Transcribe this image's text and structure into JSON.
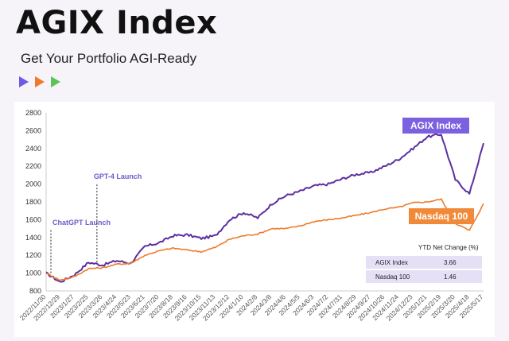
{
  "header": {
    "title": "AGIX Index",
    "subtitle": "Get Your Portfolio AGI-Ready",
    "arrow_colors": [
      "#6d5ae6",
      "#f07a2c",
      "#5ec25a"
    ]
  },
  "chart_data": {
    "type": "line",
    "title": "",
    "xlabel": "",
    "ylabel": "",
    "ylim": [
      800,
      2800
    ],
    "yticks": [
      800,
      1000,
      1200,
      1400,
      1600,
      1800,
      2000,
      2200,
      2400,
      2600,
      2800
    ],
    "xticks": [
      "2022/11/30",
      "2022/12/29",
      "2023/1/27",
      "2023/2/25",
      "2023/3/26",
      "2023/4/24",
      "2023/5/23",
      "2023/6/21",
      "2023/7/20",
      "2023/8/18",
      "2023/9/16",
      "2023/10/15",
      "2023/11/13",
      "2023/12/12",
      "2024/1/10",
      "2024/2/8",
      "2024/3/8",
      "2024/4/6",
      "2024/5/5",
      "2024/6/3",
      "2024/7/2",
      "2024/7/31",
      "2024/8/29",
      "2024/9/27",
      "2024/10/26",
      "2024/11/24",
      "2024/12/23",
      "2025/1/21",
      "2025/2/19",
      "2025/3/20",
      "2025/4/18",
      "2025/5/17"
    ],
    "grid": false,
    "series": [
      {
        "name": "AGIX Index",
        "color": "#5b2fa0",
        "values": [
          1000,
          900,
          980,
          1120,
          1090,
          1140,
          1110,
          1300,
          1340,
          1420,
          1430,
          1390,
          1420,
          1600,
          1680,
          1620,
          1780,
          1870,
          1920,
          1980,
          2000,
          2060,
          2110,
          2130,
          2200,
          2280,
          2400,
          2530,
          2560,
          2050,
          1890,
          2460
        ]
      },
      {
        "name": "Nasdaq 100",
        "color": "#ef7a2a",
        "values": [
          1000,
          920,
          960,
          1050,
          1060,
          1100,
          1110,
          1200,
          1250,
          1280,
          1260,
          1240,
          1290,
          1380,
          1420,
          1440,
          1500,
          1500,
          1530,
          1580,
          1600,
          1620,
          1650,
          1680,
          1720,
          1740,
          1790,
          1800,
          1830,
          1560,
          1480,
          1780
        ]
      }
    ],
    "annotations": [
      {
        "label": "ChatGPT Launch",
        "x": "2022/11/30",
        "color": "#6b5cc9"
      },
      {
        "label": "GPT-4 Launch",
        "x": "2023/3/14",
        "color": "#6b5cc9"
      }
    ],
    "legend": {
      "placement": "right",
      "agix_label": "AGIX Index",
      "agix_bg": "#7b61e0",
      "ndx_label": "Nasdaq 100",
      "ndx_bg": "#f08a3a"
    },
    "ytd_table": {
      "header": "YTD Net Change (%)",
      "rows": [
        {
          "name": "AGIX Index",
          "value": "3.66"
        },
        {
          "name": "Nasdaq 100",
          "value": "1.46"
        }
      ],
      "row_bg": "#e6e0f7"
    }
  }
}
